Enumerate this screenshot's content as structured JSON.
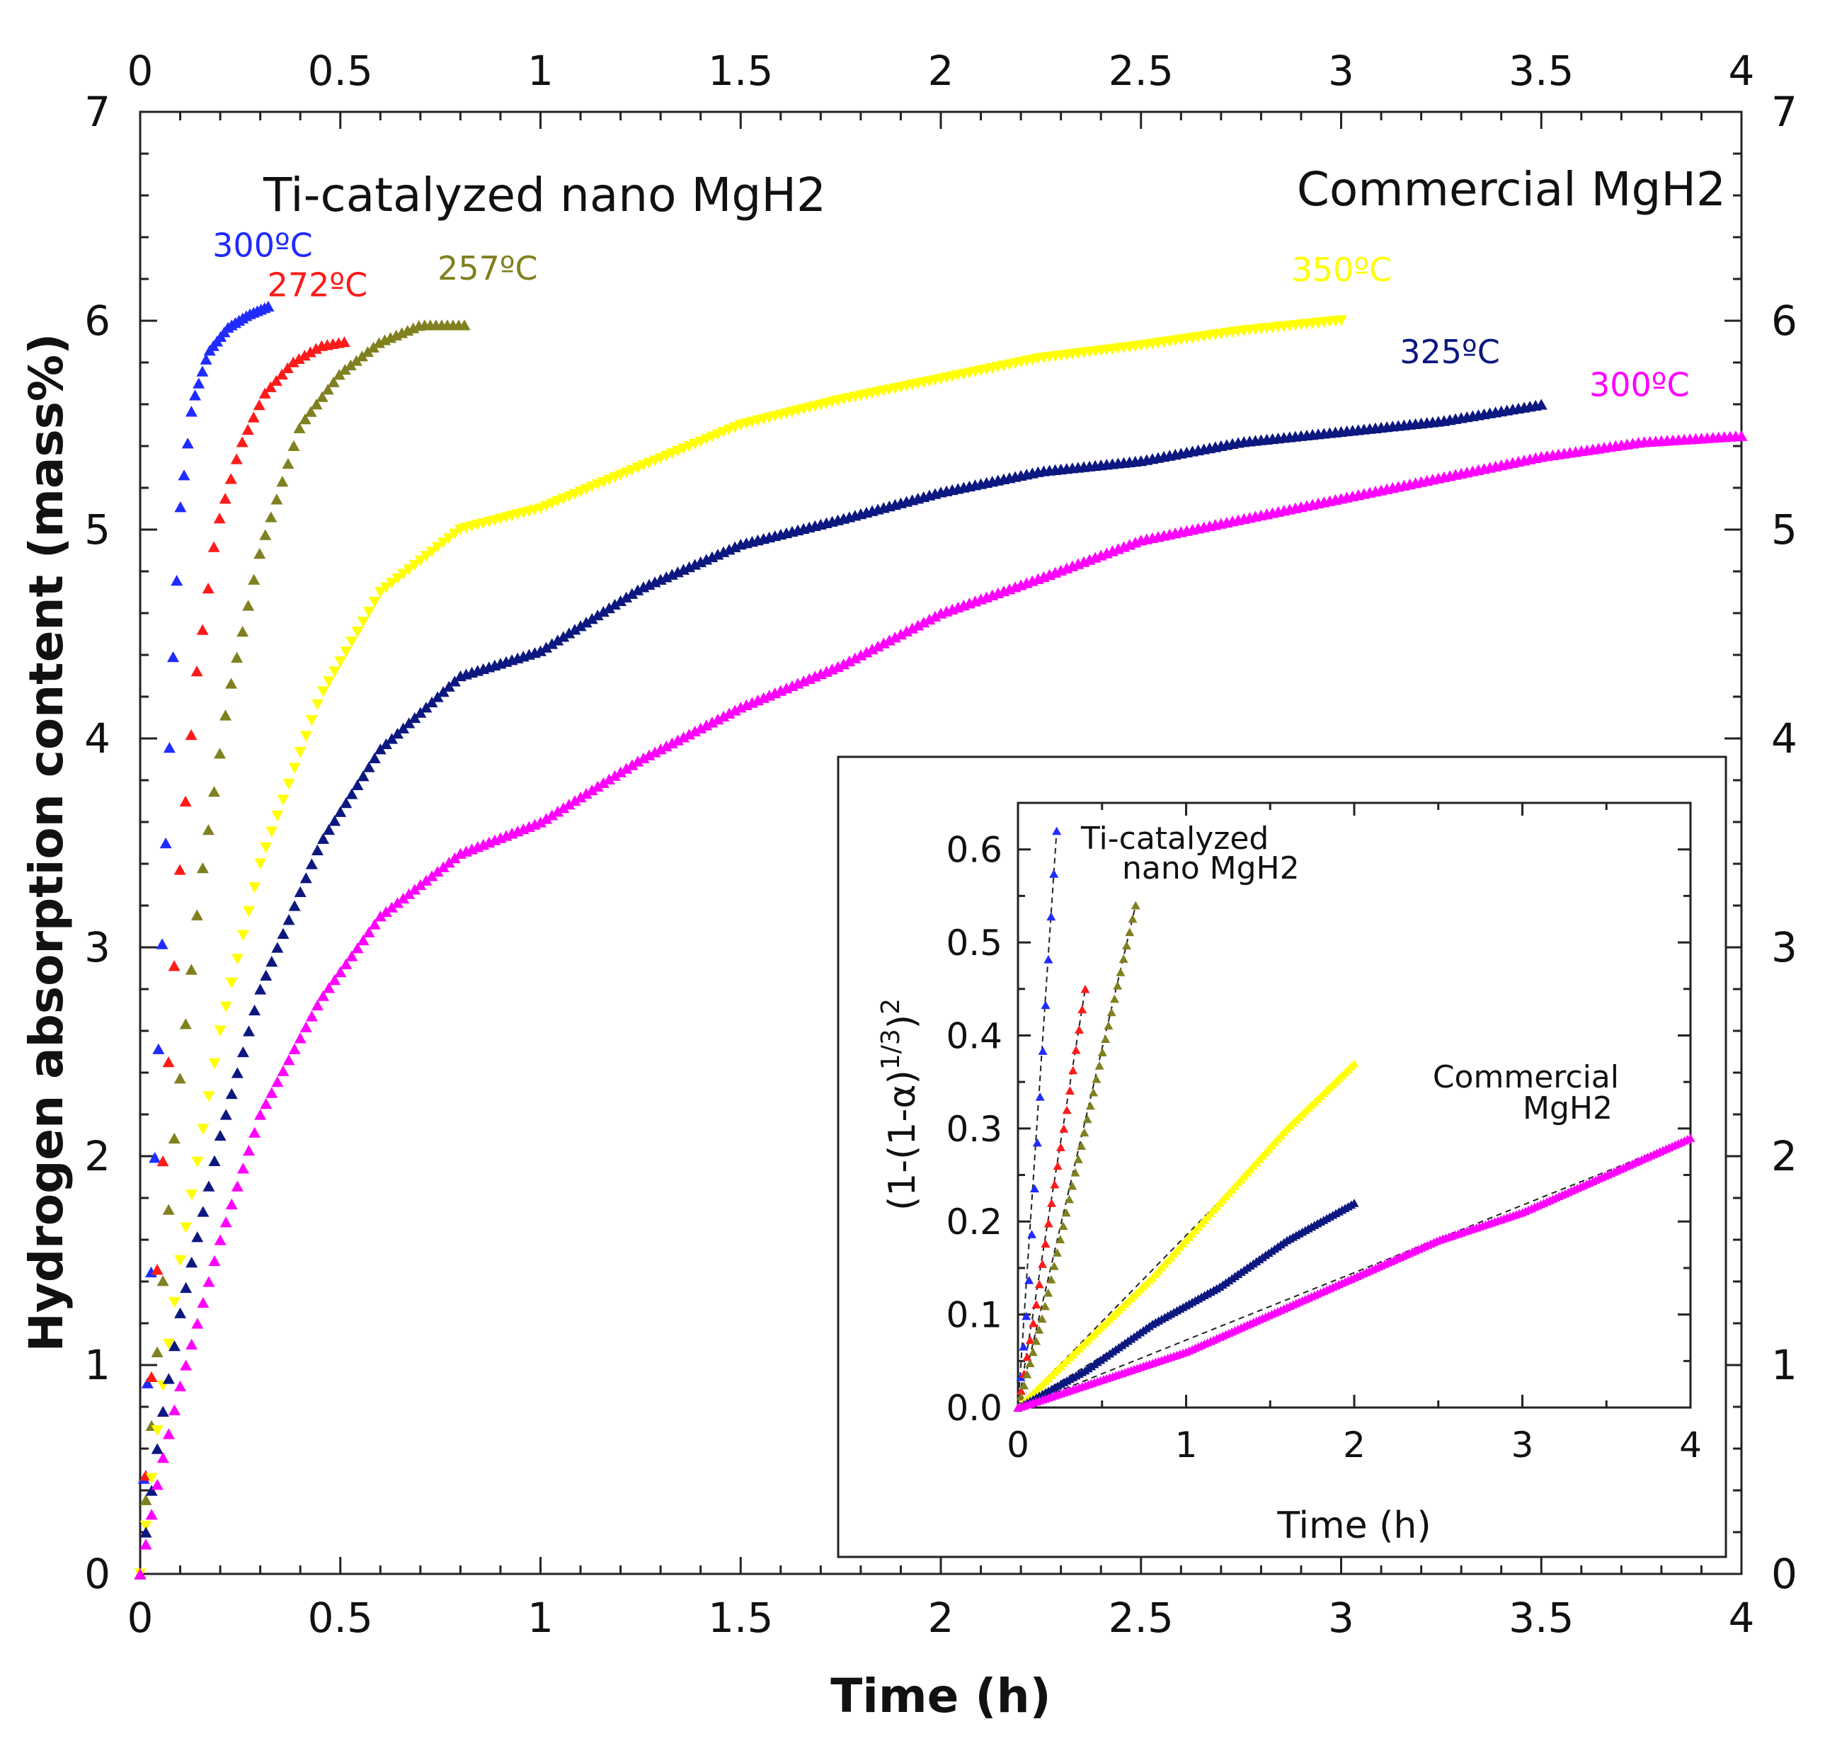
{
  "chart_data": [
    {
      "type": "scatter",
      "title": "",
      "xlabel": "Time (h)",
      "ylabel": "Hydrogen absorption content (mass%)",
      "xlim": [
        0,
        4
      ],
      "ylim": [
        0,
        7
      ],
      "x_ticks": [
        "0",
        "0.5",
        "1",
        "1.5",
        "2",
        "2.5",
        "3",
        "3.5",
        "4"
      ],
      "y_ticks": [
        "0",
        "1",
        "2",
        "3",
        "4",
        "5",
        "6",
        "7"
      ],
      "grid": false,
      "groups": [
        {
          "label": "Ti-catalyzed nano MgH2"
        },
        {
          "label": "Commercial MgH2"
        }
      ],
      "series": [
        {
          "name": "300°C",
          "label": "300ºC",
          "group": "Ti-catalyzed nano MgH2",
          "color": "#1f2bff",
          "marker": "triangle",
          "end_x": 0.32,
          "final_value": 6.07,
          "points": [
            [
              0,
              0
            ],
            [
              0.02,
              1.0
            ],
            [
              0.04,
              2.2
            ],
            [
              0.06,
              3.3
            ],
            [
              0.08,
              4.3
            ],
            [
              0.1,
              5.1
            ],
            [
              0.13,
              5.6
            ],
            [
              0.17,
              5.85
            ],
            [
              0.22,
              5.97
            ],
            [
              0.27,
              6.03
            ],
            [
              0.32,
              6.07
            ]
          ]
        },
        {
          "name": "272°C",
          "label": "272ºC",
          "group": "Ti-catalyzed nano MgH2",
          "color": "#ff1a1a",
          "marker": "triangle",
          "end_x": 0.51,
          "final_value": 5.9,
          "points": [
            [
              0,
              0
            ],
            [
              0.03,
              1.0
            ],
            [
              0.06,
              2.1
            ],
            [
              0.1,
              3.4
            ],
            [
              0.14,
              4.3
            ],
            [
              0.19,
              5.0
            ],
            [
              0.25,
              5.4
            ],
            [
              0.31,
              5.65
            ],
            [
              0.38,
              5.8
            ],
            [
              0.45,
              5.88
            ],
            [
              0.51,
              5.9
            ]
          ]
        },
        {
          "name": "257°C",
          "label": "257ºC",
          "group": "Ti-catalyzed nano MgH2",
          "color": "#808020",
          "marker": "triangle",
          "end_x": 0.81,
          "final_value": 5.98,
          "points": [
            [
              0,
              0
            ],
            [
              0.04,
              1.0
            ],
            [
              0.09,
              2.2
            ],
            [
              0.15,
              3.3
            ],
            [
              0.22,
              4.2
            ],
            [
              0.3,
              4.9
            ],
            [
              0.4,
              5.5
            ],
            [
              0.5,
              5.75
            ],
            [
              0.6,
              5.9
            ],
            [
              0.7,
              5.98
            ],
            [
              0.81,
              5.98
            ]
          ]
        },
        {
          "name": "350°C",
          "label": "350ºC",
          "group": "Commercial MgH2",
          "color": "#ffff00",
          "marker": "triangle-down",
          "end_x": 3.0,
          "final_value": 6.0,
          "points": [
            [
              0,
              0
            ],
            [
              0.05,
              0.8
            ],
            [
              0.1,
              1.5
            ],
            [
              0.2,
              2.6
            ],
            [
              0.3,
              3.4
            ],
            [
              0.45,
              4.2
            ],
            [
              0.6,
              4.7
            ],
            [
              0.8,
              5.0
            ],
            [
              1.0,
              5.1
            ],
            [
              1.25,
              5.3
            ],
            [
              1.5,
              5.5
            ],
            [
              1.75,
              5.62
            ],
            [
              2.0,
              5.72
            ],
            [
              2.25,
              5.82
            ],
            [
              2.5,
              5.88
            ],
            [
              2.75,
              5.95
            ],
            [
              3.0,
              6.0
            ]
          ]
        },
        {
          "name": "325°C",
          "label": "325ºC",
          "group": "Commercial MgH2",
          "color": "#0c1780",
          "marker": "triangle",
          "end_x": 3.5,
          "final_value": 5.6,
          "points": [
            [
              0,
              0
            ],
            [
              0.05,
              0.7
            ],
            [
              0.1,
              1.25
            ],
            [
              0.2,
              2.1
            ],
            [
              0.3,
              2.8
            ],
            [
              0.45,
              3.5
            ],
            [
              0.6,
              3.95
            ],
            [
              0.8,
              4.3
            ],
            [
              1.0,
              4.42
            ],
            [
              1.25,
              4.72
            ],
            [
              1.5,
              4.93
            ],
            [
              1.75,
              5.05
            ],
            [
              2.0,
              5.18
            ],
            [
              2.25,
              5.28
            ],
            [
              2.5,
              5.33
            ],
            [
              2.75,
              5.42
            ],
            [
              3.0,
              5.47
            ],
            [
              3.25,
              5.52
            ],
            [
              3.5,
              5.6
            ]
          ]
        },
        {
          "name": "300°C",
          "label": "300ºC",
          "group": "Commercial MgH2",
          "color": "#ff00ff",
          "marker": "triangle",
          "end_x": 4.0,
          "final_value": 5.45,
          "points": [
            [
              0,
              0
            ],
            [
              0.05,
              0.5
            ],
            [
              0.1,
              0.9
            ],
            [
              0.2,
              1.6
            ],
            [
              0.3,
              2.2
            ],
            [
              0.45,
              2.75
            ],
            [
              0.6,
              3.15
            ],
            [
              0.8,
              3.45
            ],
            [
              1.0,
              3.6
            ],
            [
              1.25,
              3.9
            ],
            [
              1.5,
              4.15
            ],
            [
              1.75,
              4.35
            ],
            [
              2.0,
              4.6
            ],
            [
              2.25,
              4.77
            ],
            [
              2.5,
              4.95
            ],
            [
              2.75,
              5.05
            ],
            [
              3.0,
              5.15
            ],
            [
              3.25,
              5.25
            ],
            [
              3.5,
              5.35
            ],
            [
              3.75,
              5.42
            ],
            [
              4.0,
              5.45
            ]
          ]
        }
      ]
    },
    {
      "type": "scatter",
      "title": "",
      "xlabel": "Time (h)",
      "ylabel": "(1-(1-α)^(1/3))^2",
      "ylabel_main": "(1-(1-α)",
      "ylabel_sup1": "1/3",
      "ylabel_close": ")",
      "ylabel_sup2": "2",
      "xlim": [
        0,
        4
      ],
      "ylim": [
        0,
        0.65
      ],
      "x_ticks": [
        "0",
        "1",
        "2",
        "3",
        "4"
      ],
      "y_ticks": [
        "0.0",
        "0.1",
        "0.2",
        "0.3",
        "0.4",
        "0.5",
        "0.6"
      ],
      "fit_line_style": "dashed",
      "groups": [
        {
          "label_line1": "Ti-catalyzed",
          "label_line2": "nano MgH2"
        },
        {
          "label_line1": "Commercial",
          "label_line2": "MgH2"
        }
      ],
      "series": [
        {
          "name": "nano 300°C",
          "color": "#1f2bff",
          "end_x": 0.23,
          "end_y": 0.62,
          "points": [
            [
              0,
              0
            ],
            [
              0.06,
              0.12
            ],
            [
              0.12,
              0.3
            ],
            [
              0.18,
              0.48
            ],
            [
              0.23,
              0.62
            ]
          ]
        },
        {
          "name": "nano 272°C",
          "color": "#ff1a1a",
          "end_x": 0.4,
          "end_y": 0.45,
          "points": [
            [
              0,
              0
            ],
            [
              0.1,
              0.1
            ],
            [
              0.2,
              0.22
            ],
            [
              0.3,
              0.33
            ],
            [
              0.4,
              0.45
            ]
          ]
        },
        {
          "name": "nano 257°C",
          "color": "#808020",
          "end_x": 0.7,
          "end_y": 0.54,
          "points": [
            [
              0,
              0
            ],
            [
              0.15,
              0.1
            ],
            [
              0.3,
              0.22
            ],
            [
              0.5,
              0.38
            ],
            [
              0.7,
              0.54
            ]
          ]
        },
        {
          "name": "commercial 350°C",
          "color": "#ffff00",
          "end_x": 2.0,
          "end_y": 0.37,
          "points": [
            [
              0,
              0
            ],
            [
              0.4,
              0.07
            ],
            [
              0.8,
              0.14
            ],
            [
              1.2,
              0.22
            ],
            [
              1.6,
              0.3
            ],
            [
              2.0,
              0.37
            ]
          ]
        },
        {
          "name": "commercial 325°C",
          "color": "#0c1780",
          "end_x": 2.0,
          "end_y": 0.22,
          "points": [
            [
              0,
              0
            ],
            [
              0.4,
              0.04
            ],
            [
              0.8,
              0.09
            ],
            [
              1.2,
              0.13
            ],
            [
              1.6,
              0.18
            ],
            [
              2.0,
              0.22
            ]
          ]
        },
        {
          "name": "commercial 300°C",
          "color": "#ff00ff",
          "end_x": 4.0,
          "end_y": 0.29,
          "points": [
            [
              0,
              0
            ],
            [
              0.5,
              0.03
            ],
            [
              1.0,
              0.06
            ],
            [
              1.5,
              0.1
            ],
            [
              2.0,
              0.14
            ],
            [
              2.5,
              0.18
            ],
            [
              3.0,
              0.21
            ],
            [
              3.5,
              0.25
            ],
            [
              4.0,
              0.29
            ]
          ]
        }
      ]
    }
  ]
}
